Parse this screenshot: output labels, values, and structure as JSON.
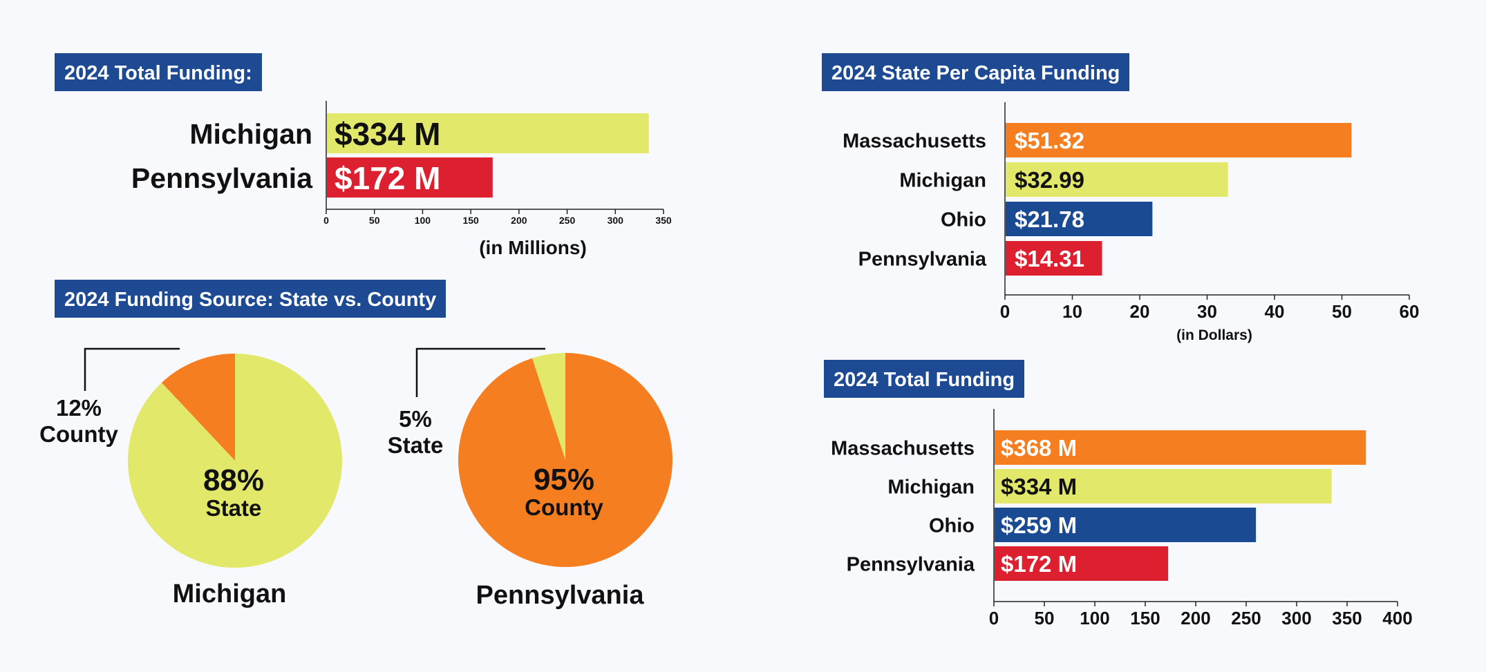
{
  "colors": {
    "title_bg": "#1d4a93",
    "title_text": "#ffffff",
    "Massachusetts": "#f57f20",
    "Michigan": "#e2e86a",
    "Ohio": "#1a4a92",
    "Pennsylvania": "#dd2030",
    "state_slice": "#e2e86a",
    "county_slice": "#f57f20"
  },
  "chart_data": [
    {
      "type": "bar",
      "orientation": "horizontal",
      "title": "2024 Total Funding:",
      "categories": [
        "Michigan",
        "Pennsylvania"
      ],
      "values": [
        334,
        172
      ],
      "data_labels": [
        "$334 M",
        "$172 M"
      ],
      "xlabel": "(in Millions)",
      "xlim": [
        0,
        350
      ],
      "xticks": [
        0,
        50,
        100,
        150,
        200,
        250,
        300,
        350
      ],
      "grid": false
    },
    {
      "type": "bar",
      "orientation": "horizontal",
      "title": "2024 State Per Capita Funding",
      "categories": [
        "Massachusetts",
        "Michigan",
        "Ohio",
        "Pennsylvania"
      ],
      "values": [
        51.32,
        32.99,
        21.78,
        14.31
      ],
      "data_labels": [
        "$51.32",
        "$32.99",
        "$21.78",
        "$14.31"
      ],
      "xlabel": "(in Dollars)",
      "xlim": [
        0,
        60
      ],
      "xticks": [
        0,
        10,
        20,
        30,
        40,
        50,
        60
      ],
      "grid": false
    },
    {
      "type": "pie",
      "panel_title": "2024 Funding Source: State vs. County",
      "name": "Michigan",
      "slices": [
        {
          "label": "State",
          "value": 88,
          "text": "88%"
        },
        {
          "label": "County",
          "value": 12,
          "text": "12%"
        }
      ]
    },
    {
      "type": "pie",
      "name": "Pennsylvania",
      "slices": [
        {
          "label": "County",
          "value": 95,
          "text": "95%"
        },
        {
          "label": "State",
          "value": 5,
          "text": "5%"
        }
      ]
    },
    {
      "type": "bar",
      "orientation": "horizontal",
      "title": "2024 Total Funding",
      "categories": [
        "Massachusetts",
        "Michigan",
        "Ohio",
        "Pennsylvania"
      ],
      "values": [
        368,
        334,
        259,
        172
      ],
      "data_labels": [
        "$368 M",
        "$334 M",
        "$259 M",
        "$172 M"
      ],
      "xlabel": "",
      "xlim": [
        0,
        400
      ],
      "xticks": [
        0,
        50,
        100,
        150,
        200,
        250,
        300,
        350,
        400
      ],
      "grid": false
    }
  ]
}
